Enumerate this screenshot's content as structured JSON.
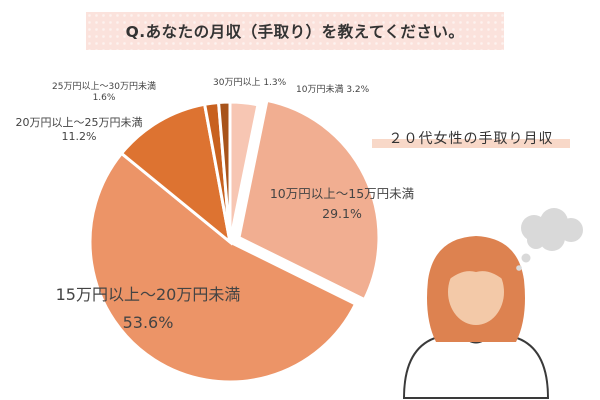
{
  "title": "Q.あなたの月収（手取り）を教えてください。",
  "subtitle": "２０代女性の手取り月収",
  "chart_data": {
    "type": "pie",
    "title": "２０代女性の手取り月収",
    "slices": [
      {
        "label": "10万円未満",
        "value": 3.2,
        "value_label": "3.2%",
        "color": "#f7c6b3"
      },
      {
        "label": "10万円以上〜15万円未満",
        "value": 29.1,
        "value_label": "29.1%",
        "color": "#f1ae91"
      },
      {
        "label": "15万円以上〜20万円未満",
        "value": 53.6,
        "value_label": "53.6%",
        "color": "#ec9467"
      },
      {
        "label": "20万円以上〜25万円未満",
        "value": 11.2,
        "value_label": "11.2%",
        "color": "#dd7331"
      },
      {
        "label": "25万円以上〜30万円未満",
        "value": 1.6,
        "value_label": "1.6%",
        "color": "#c8611f"
      },
      {
        "label": "30万円以上",
        "value": 1.3,
        "value_label": "1.3%",
        "color": "#a8541b"
      }
    ]
  },
  "icons": {
    "person": "woman-thinking-icon",
    "thought": "thought-bubble-icon"
  },
  "colors": {
    "banner": "#fbe2dc",
    "hair": "#dd8250",
    "skin": "#f3c9a8"
  }
}
